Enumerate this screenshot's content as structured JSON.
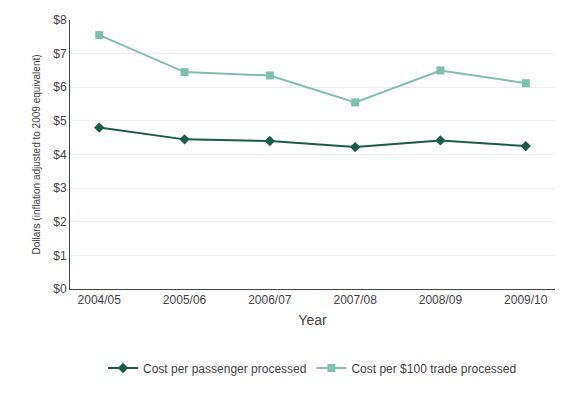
{
  "chart_data": {
    "type": "line",
    "categories": [
      "2004/05",
      "2005/06",
      "2006/07",
      "2007/08",
      "2008/09",
      "2009/10"
    ],
    "series": [
      {
        "name": "Cost per passenger processed",
        "color": "#1a5c4a",
        "marker": "diamond",
        "values": [
          4.8,
          4.45,
          4.4,
          4.22,
          4.42,
          4.25
        ]
      },
      {
        "name": "Cost per $100 trade processed",
        "color": "#7fbfb0",
        "marker": "square",
        "values": [
          7.55,
          6.45,
          6.35,
          5.55,
          6.5,
          6.12
        ]
      }
    ],
    "xlabel": "Year",
    "ylabel": "Dollars (inflation adjusted to 2009 equivalent)",
    "ylim": [
      0,
      8
    ],
    "yticks": [
      {
        "value": 0,
        "label": "$0"
      },
      {
        "value": 1,
        "label": "$1"
      },
      {
        "value": 2,
        "label": "$2"
      },
      {
        "value": 3,
        "label": "$3"
      },
      {
        "value": 4,
        "label": "$4"
      },
      {
        "value": 5,
        "label": "$5"
      },
      {
        "value": 6,
        "label": "$6"
      },
      {
        "value": 7,
        "label": "$7"
      },
      {
        "value": 8,
        "label": "$8"
      }
    ],
    "grid": true,
    "legend": "bottom"
  }
}
